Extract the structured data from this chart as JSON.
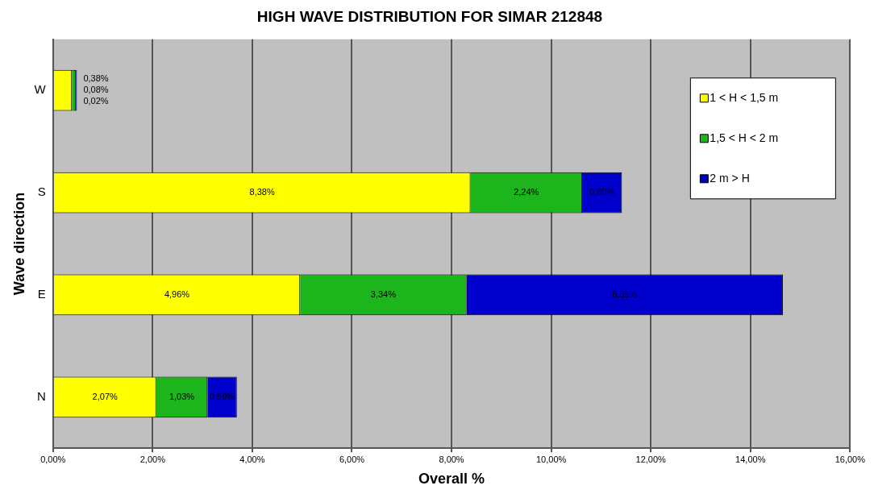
{
  "chart_data": {
    "type": "bar",
    "orientation": "horizontal",
    "stacked": true,
    "title": "HIGH WAVE DISTRIBUTION FOR SIMAR 212848",
    "xlabel": "Overall %",
    "ylabel": "Wave direction",
    "categories": [
      "W",
      "S",
      "E",
      "N"
    ],
    "series": [
      {
        "name": "1 < H < 1,5 m",
        "color": "#ffff00",
        "values": [
          0.38,
          8.38,
          4.96,
          2.07
        ],
        "value_labels": [
          "0,38%",
          "8,38%",
          "4,96%",
          "2,07%"
        ]
      },
      {
        "name": "1,5 < H < 2 m",
        "color": "#1cb51c",
        "values": [
          0.08,
          2.24,
          3.34,
          1.03
        ],
        "value_labels": [
          "0,08%",
          "2,24%",
          "3,34%",
          "1,03%"
        ]
      },
      {
        "name": "2 m > H",
        "color": "#0000cc",
        "values": [
          0.02,
          0.8,
          6.35,
          0.59
        ],
        "value_labels": [
          "0,02%",
          "0,80%",
          "6,35%",
          "0,59%"
        ]
      }
    ],
    "xlim": [
      0,
      16
    ],
    "xticks": [
      {
        "value": 0,
        "label": "0,00%"
      },
      {
        "value": 2,
        "label": "2,00%"
      },
      {
        "value": 4,
        "label": "4,00%"
      },
      {
        "value": 6,
        "label": "6,00%"
      },
      {
        "value": 8,
        "label": "8,00%"
      },
      {
        "value": 10,
        "label": "10,00%"
      },
      {
        "value": 12,
        "label": "12,00%"
      },
      {
        "value": 14,
        "label": "14,00%"
      },
      {
        "value": 16,
        "label": "16,00%"
      }
    ],
    "grid": "x",
    "legend": "top right"
  }
}
